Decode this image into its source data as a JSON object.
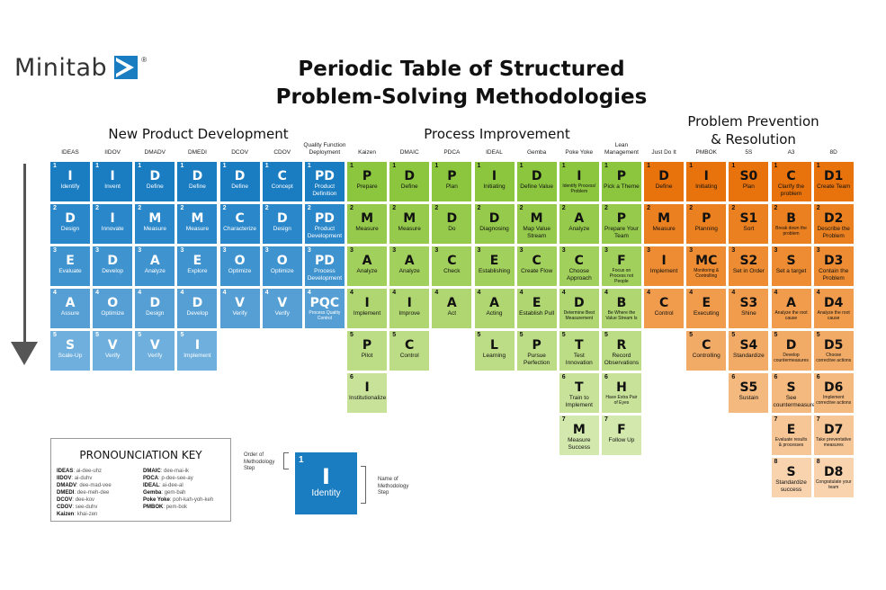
{
  "logo": {
    "text": "Minitab",
    "mark": "®",
    "icon": "minitab-arrow-icon",
    "color": "#1a7cc1"
  },
  "title": {
    "line1": "Periodic Table of Structured",
    "line2": "Problem-Solving Methodologies"
  },
  "sections": [
    {
      "label": "New Product Development",
      "color": "#1a7cc1"
    },
    {
      "label": "Process Improvement",
      "color": "#8cc63f"
    },
    {
      "label_line1": "Problem Prevention",
      "label_line2": "& Resolution",
      "color": "#e8720c"
    }
  ],
  "columns": [
    {
      "header": "IDEAS",
      "section": 0,
      "steps": [
        [
          "I",
          "Identify"
        ],
        [
          "D",
          "Design"
        ],
        [
          "E",
          "Evaluate"
        ],
        [
          "A",
          "Assure"
        ],
        [
          "S",
          "Scale-Up"
        ]
      ]
    },
    {
      "header": "IIDOV",
      "section": 0,
      "steps": [
        [
          "I",
          "Invent"
        ],
        [
          "I",
          "Innovate"
        ],
        [
          "D",
          "Develop"
        ],
        [
          "O",
          "Optimize"
        ],
        [
          "V",
          "Verify"
        ]
      ]
    },
    {
      "header": "DMADV",
      "section": 0,
      "steps": [
        [
          "D",
          "Define"
        ],
        [
          "M",
          "Measure"
        ],
        [
          "A",
          "Analyze"
        ],
        [
          "D",
          "Design"
        ],
        [
          "V",
          "Verify"
        ]
      ]
    },
    {
      "header": "DMEDI",
      "section": 0,
      "steps": [
        [
          "D",
          "Define"
        ],
        [
          "M",
          "Measure"
        ],
        [
          "E",
          "Explore"
        ],
        [
          "D",
          "Develop"
        ],
        [
          "I",
          "Implement"
        ]
      ]
    },
    {
      "header": "DCOV",
      "section": 0,
      "steps": [
        [
          "D",
          "Define"
        ],
        [
          "C",
          "Characterize"
        ],
        [
          "O",
          "Optimize"
        ],
        [
          "V",
          "Verify"
        ]
      ]
    },
    {
      "header": "CDOV",
      "section": 0,
      "steps": [
        [
          "C",
          "Concept"
        ],
        [
          "D",
          "Design"
        ],
        [
          "O",
          "Optimize"
        ],
        [
          "V",
          "Verify"
        ]
      ]
    },
    {
      "header": "Quality Function Deployment",
      "section": 0,
      "steps": [
        [
          "PD",
          "Product Definition"
        ],
        [
          "PD",
          "Product Development"
        ],
        [
          "PD",
          "Process Development"
        ],
        [
          "PQC",
          "Process Quality Control"
        ]
      ]
    },
    {
      "header": "Kaizen",
      "section": 1,
      "steps": [
        [
          "P",
          "Prepare"
        ],
        [
          "M",
          "Measure"
        ],
        [
          "A",
          "Analyze"
        ],
        [
          "I",
          "Implement"
        ],
        [
          "P",
          "Pilot"
        ],
        [
          "I",
          "Institutionalize"
        ]
      ]
    },
    {
      "header": "DMAIC",
      "section": 1,
      "steps": [
        [
          "D",
          "Define"
        ],
        [
          "M",
          "Measure"
        ],
        [
          "A",
          "Analyze"
        ],
        [
          "I",
          "Improve"
        ],
        [
          "C",
          "Control"
        ]
      ]
    },
    {
      "header": "PDCA",
      "section": 1,
      "steps": [
        [
          "P",
          "Plan"
        ],
        [
          "D",
          "Do"
        ],
        [
          "C",
          "Check"
        ],
        [
          "A",
          "Act"
        ]
      ]
    },
    {
      "header": "IDEAL",
      "section": 1,
      "steps": [
        [
          "I",
          "Initiating"
        ],
        [
          "D",
          "Diagnosing"
        ],
        [
          "E",
          "Establishing"
        ],
        [
          "A",
          "Acting"
        ],
        [
          "L",
          "Learning"
        ]
      ]
    },
    {
      "header": "Gemba",
      "section": 1,
      "steps": [
        [
          "D",
          "Define Value"
        ],
        [
          "M",
          "Map Value Stream"
        ],
        [
          "C",
          "Create Flow"
        ],
        [
          "E",
          "Establish Pull"
        ],
        [
          "P",
          "Pursue Perfection"
        ]
      ]
    },
    {
      "header": "Poke Yoke",
      "section": 1,
      "steps": [
        [
          "I",
          "Identify Process/ Problem"
        ],
        [
          "A",
          "Analyze"
        ],
        [
          "C",
          "Choose Approach"
        ],
        [
          "D",
          "Determine Best Measurement"
        ],
        [
          "T",
          "Test Innovation"
        ],
        [
          "T",
          "Train to Implement"
        ],
        [
          "M",
          "Measure Success"
        ]
      ]
    },
    {
      "header": "Lean Management",
      "section": 1,
      "steps": [
        [
          "P",
          "Pick a Theme"
        ],
        [
          "P",
          "Prepare Your Team"
        ],
        [
          "F",
          "Focus on Process not People"
        ],
        [
          "B",
          "Be Where the Value Stream Is"
        ],
        [
          "R",
          "Record Observations"
        ],
        [
          "H",
          "Have Extra Pair of Eyes"
        ],
        [
          "F",
          "Follow Up"
        ]
      ]
    },
    {
      "header": "Just Do It",
      "section": 2,
      "steps": [
        [
          "D",
          "Define"
        ],
        [
          "M",
          "Measure"
        ],
        [
          "I",
          "Implement"
        ],
        [
          "C",
          "Control"
        ]
      ]
    },
    {
      "header": "PMBOK",
      "section": 2,
      "steps": [
        [
          "I",
          "Initiating"
        ],
        [
          "P",
          "Planning"
        ],
        [
          "MC",
          "Monitoring & Controlling"
        ],
        [
          "E",
          "Executing"
        ],
        [
          "C",
          "Controlling"
        ]
      ]
    },
    {
      "header": "5S",
      "section": 2,
      "steps": [
        [
          "S0",
          "Plan"
        ],
        [
          "S1",
          "Sort"
        ],
        [
          "S2",
          "Set in Order"
        ],
        [
          "S3",
          "Shine"
        ],
        [
          "S4",
          "Standardize"
        ],
        [
          "S5",
          "Sustain"
        ]
      ]
    },
    {
      "header": "A3",
      "section": 2,
      "steps": [
        [
          "C",
          "Clarify the problem"
        ],
        [
          "B",
          "Break down the problem"
        ],
        [
          "S",
          "Set a target"
        ],
        [
          "A",
          "Analyze the root cause"
        ],
        [
          "D",
          "Develop countermeasures"
        ],
        [
          "S",
          "See countermeasures"
        ],
        [
          "E",
          "Evaluate results & processes"
        ],
        [
          "S",
          "Standardize success"
        ]
      ]
    },
    {
      "header": "8D",
      "section": 2,
      "steps": [
        [
          "D1",
          "Create Team"
        ],
        [
          "D2",
          "Describe the Problem"
        ],
        [
          "D3",
          "Contain the Problem"
        ],
        [
          "D4",
          "Analyze the root cause"
        ],
        [
          "D5",
          "Choose corrective actions"
        ],
        [
          "D6",
          "Implement corrective actions"
        ],
        [
          "D7",
          "Take preventative measures"
        ],
        [
          "D8",
          "Congratulate your team"
        ]
      ]
    }
  ],
  "pronunciation_key": {
    "title": "PRONOUNCIATION KEY",
    "left": [
      [
        "IDEAS",
        "ai-dee-uhz"
      ],
      [
        "IIDOV",
        "ai-duhv"
      ],
      [
        "DMADV",
        "dee-mad-vee"
      ],
      [
        "DMEDI",
        "dee-meh-dee"
      ],
      [
        "DCOV",
        "dee-kov"
      ],
      [
        "CDOV",
        "see-duhv"
      ],
      [
        "Kaizen",
        "khai-zen"
      ]
    ],
    "right": [
      [
        "DMAIC",
        "dee-mai-ik"
      ],
      [
        "PDCA",
        "p-dee-see-ay"
      ],
      [
        "IDEAL",
        "ai-dee-al"
      ],
      [
        "Gemba",
        "gem-bah"
      ],
      [
        "Poke Yoke",
        "poh-kah-yoh-keh"
      ],
      [
        "PMBOK",
        "pem-bok"
      ]
    ]
  },
  "legend": {
    "number": "1",
    "abbr": "I",
    "name": "Identity",
    "order_label": "Order of Methodology Step",
    "name_label": "Name of Methodology Step"
  },
  "palettes": {
    "blue": [
      "#1a7cc1",
      "#2a87c9",
      "#3f93cf",
      "#569fd4",
      "#6eafdd"
    ],
    "green": [
      "#8cc63f",
      "#96ca4c",
      "#a2d05d",
      "#afd670",
      "#bcdc85",
      "#c8e29a",
      "#d3e8ad"
    ],
    "orange": [
      "#e8720c",
      "#eb8020",
      "#ed8c32",
      "#f09c4c",
      "#f2ab66",
      "#f4b97e",
      "#f6c697",
      "#f8d3ae"
    ]
  }
}
